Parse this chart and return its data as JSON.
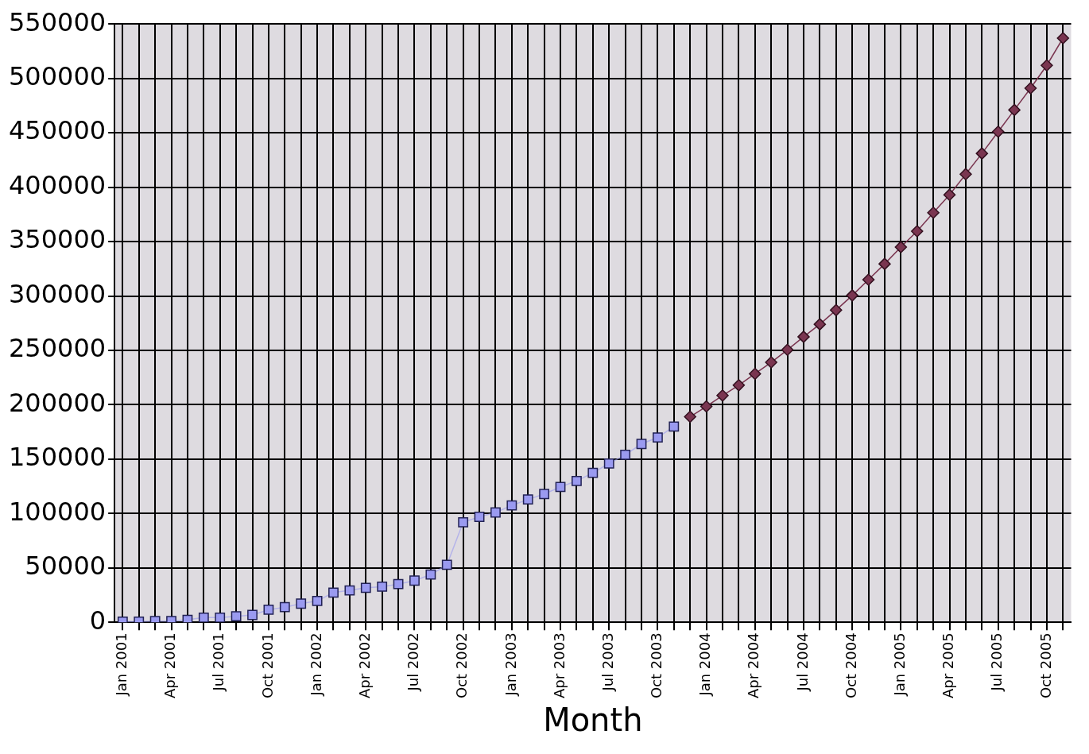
{
  "chart_data": {
    "type": "line",
    "xlabel": "Month",
    "categories": [
      "Jan 2001",
      null,
      null,
      "Apr 2001",
      null,
      null,
      "Jul 2001",
      null,
      null,
      "Oct 2001",
      null,
      null,
      "Jan 2002",
      null,
      null,
      "Apr 2002",
      null,
      null,
      "Jul 2002",
      null,
      null,
      "Oct 2002",
      null,
      null,
      "Jan 2003",
      null,
      null,
      "Apr 2003",
      null,
      null,
      "Jul 2003",
      null,
      null,
      "Oct 2003",
      null,
      null,
      "Jan 2004",
      null,
      null,
      "Apr 2004",
      null,
      null,
      "Jul 2004",
      null,
      null,
      "Oct 2004",
      null,
      null,
      "Jan 2005",
      null,
      null,
      "Apr 2005",
      null,
      null,
      "Jul 2005",
      null,
      null,
      "Oct 2005",
      null
    ],
    "series": [
      {
        "color": "#9a9af0",
        "marker": "square",
        "values": [
          700,
          700,
          1200,
          1200,
          2400,
          4400,
          4400,
          5600,
          6800,
          11600,
          14000,
          17200,
          19700,
          27400,
          29400,
          31800,
          32800,
          35200,
          38400,
          43900,
          52900,
          92000,
          97000,
          101000,
          107500,
          113000,
          118000,
          124500,
          130000,
          137500,
          146000,
          154000,
          164000,
          170000,
          180000,
          null,
          null,
          null,
          null,
          null,
          null,
          null,
          null,
          null,
          null,
          null,
          null,
          null,
          null,
          null,
          null,
          null,
          null,
          null,
          null,
          null,
          null,
          null,
          null
        ]
      },
      {
        "color": "#7a3550",
        "marker": "diamond",
        "values": [
          null,
          null,
          null,
          null,
          null,
          null,
          null,
          null,
          null,
          null,
          null,
          null,
          null,
          null,
          null,
          null,
          null,
          null,
          null,
          null,
          null,
          null,
          null,
          null,
          null,
          null,
          null,
          null,
          null,
          null,
          null,
          null,
          null,
          null,
          null,
          189000,
          198500,
          208500,
          218000,
          228500,
          239000,
          250500,
          262500,
          274000,
          287000,
          300500,
          315000,
          329500,
          345000,
          359500,
          376500,
          393000,
          412000,
          431000,
          451000,
          471000,
          491000,
          512000,
          537000
        ]
      }
    ],
    "ylim": [
      0,
      550000
    ],
    "yticks": [
      0,
      50000,
      100000,
      150000,
      200000,
      250000,
      300000,
      350000,
      400000,
      450000,
      500000,
      550000
    ],
    "grid": true,
    "legend": false
  }
}
